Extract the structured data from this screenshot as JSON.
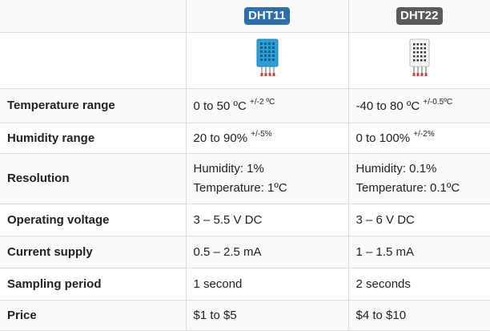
{
  "header": {
    "col1": {
      "badge": "DHT11",
      "color": "#2f6fa7"
    },
    "col2": {
      "badge": "DHT22",
      "color": "#5a5a5a"
    }
  },
  "sensors": {
    "dht11": {
      "icon": "dht11-sensor-icon",
      "body_color": "#2a9fd8",
      "pin_color": "#d04040"
    },
    "dht22": {
      "icon": "dht22-sensor-icon",
      "body_color": "#f4f4f4",
      "pin_color": "#d04040"
    }
  },
  "rows": [
    {
      "label": "Temperature range",
      "dht11": "0 to 50 ºC",
      "dht11_sup": "+/-2 ºC",
      "dht22": "-40 to 80 ºC",
      "dht22_sup": "+/-0.5ºC"
    },
    {
      "label": "Humidity range",
      "dht11": "20 to 90%",
      "dht11_sup": "+/-5%",
      "dht22": "0 to 100%",
      "dht22_sup": "+/-2%"
    },
    {
      "label": "Resolution",
      "dht11_l1": "Humidity: 1%",
      "dht11_l2": "Temperature: 1ºC",
      "dht22_l1": "Humidity: 0.1%",
      "dht22_l2": "Temperature: 0.1ºC"
    },
    {
      "label": "Operating voltage",
      "dht11": "3 – 5.5 V DC",
      "dht22": "3 – 6 V DC"
    },
    {
      "label": "Current supply",
      "dht11": "0.5 – 2.5 mA",
      "dht22": "1 – 1.5 mA"
    },
    {
      "label": "Sampling period",
      "dht11": "1 second",
      "dht22": "2 seconds"
    },
    {
      "label": "Price",
      "dht11": "$1 to $5",
      "dht22": "$4 to $10"
    }
  ]
}
